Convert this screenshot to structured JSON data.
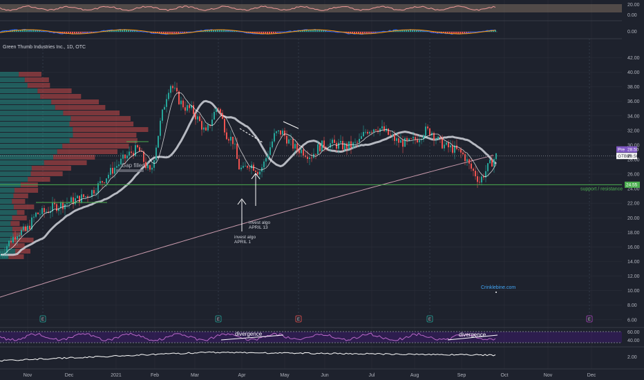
{
  "header": {
    "symbol_title": "Green Thumb Industries Inc., 1D, OTC"
  },
  "colors": {
    "background": "#1e222d",
    "up": "#26a69a",
    "down": "#ef5350",
    "ma_short": "#ffffff",
    "ma_long": "#d1d4dc",
    "ma_200": "#f8bbd0",
    "support": "#4caf50",
    "rsi": "#9c27b0",
    "volume_profile_up": "#26a69a",
    "volume_profile_down": "#ef5350"
  },
  "chart_data": [
    {
      "type": "candlestick",
      "pane": "main",
      "x_ticks": [
        "Nov",
        "Dec",
        "2021",
        "Feb",
        "Mar",
        "Apr",
        "May",
        "Jun",
        "Jul",
        "Aug",
        "Sep",
        "Oct",
        "Nov",
        "Dec"
      ],
      "y_ticks": [
        "6.00",
        "8.00",
        "10.00",
        "12.00",
        "14.00",
        "16.00",
        "18.00",
        "20.00",
        "22.00",
        "24.00",
        "26.00",
        "28.00",
        "30.00",
        "32.00",
        "34.00",
        "36.00",
        "38.00",
        "40.00",
        "42.00"
      ],
      "ylim": [
        5.6,
        43
      ],
      "price_path": [
        [
          0,
          14.8
        ],
        [
          12,
          16.5
        ],
        [
          25,
          18.0
        ],
        [
          38,
          18.2
        ],
        [
          52,
          20.5
        ],
        [
          65,
          20.8
        ],
        [
          78,
          21.5
        ],
        [
          95,
          22.0
        ],
        [
          110,
          22.5
        ],
        [
          125,
          23.0
        ],
        [
          140,
          24.2
        ],
        [
          155,
          25.8
        ],
        [
          165,
          26.8
        ],
        [
          178,
          28.0
        ],
        [
          190,
          29.0
        ],
        [
          200,
          29.5
        ],
        [
          212,
          27.0
        ],
        [
          218,
          26.0
        ],
        [
          225,
          29.5
        ],
        [
          232,
          33.0
        ],
        [
          240,
          36.5
        ],
        [
          246,
          38.5
        ],
        [
          252,
          37.5
        ],
        [
          260,
          36.0
        ],
        [
          268,
          35.2
        ],
        [
          278,
          34.8
        ],
        [
          290,
          33.0
        ],
        [
          298,
          31.5
        ],
        [
          306,
          33.5
        ],
        [
          315,
          35.5
        ],
        [
          320,
          34.0
        ],
        [
          328,
          31.5
        ],
        [
          338,
          30.5
        ],
        [
          345,
          27.0
        ],
        [
          352,
          26.5
        ],
        [
          360,
          27.5
        ],
        [
          368,
          27.0
        ],
        [
          375,
          26.3
        ],
        [
          382,
          27.5
        ],
        [
          390,
          29.5
        ],
        [
          398,
          31.5
        ],
        [
          408,
          31.8
        ],
        [
          418,
          30.5
        ],
        [
          428,
          29.5
        ],
        [
          438,
          29.2
        ],
        [
          450,
          28.5
        ],
        [
          462,
          29.8
        ],
        [
          475,
          30.2
        ],
        [
          488,
          30.0
        ],
        [
          500,
          29.8
        ],
        [
          512,
          30.0
        ],
        [
          520,
          30.5
        ],
        [
          530,
          32.0
        ],
        [
          545,
          32.5
        ],
        [
          555,
          32.0
        ],
        [
          565,
          31.2
        ],
        [
          575,
          30.5
        ],
        [
          590,
          30.2
        ],
        [
          605,
          31.0
        ],
        [
          615,
          32.0
        ],
        [
          625,
          31.8
        ],
        [
          635,
          30.5
        ],
        [
          645,
          29.8
        ],
        [
          655,
          29.5
        ],
        [
          665,
          29.0
        ],
        [
          672,
          28.5
        ],
        [
          680,
          27.0
        ],
        [
          688,
          26.0
        ],
        [
          694,
          25.0
        ],
        [
          700,
          26.0
        ],
        [
          708,
          27.2
        ],
        [
          718,
          28.5
        ]
      ],
      "last_price": "28.50",
      "prev_label": "Pre",
      "prev_price": "28.50",
      "symbol_label": "GTBIF",
      "support_price": "24.55",
      "support_label": "support / resistance",
      "gap_label": "Gap filled",
      "annotations": [
        {
          "text1": "invest algo",
          "text2": "APRIL 1"
        },
        {
          "text1": "invest algo",
          "text2": "APRIL 13"
        }
      ],
      "watermark": "Crinklebine.com",
      "event_markers": [
        "E",
        "E",
        "E",
        "E",
        "E"
      ]
    },
    {
      "type": "line",
      "pane": "top-oscillator",
      "y_ticks": [
        "20.00",
        "0.00"
      ]
    },
    {
      "type": "histogram",
      "pane": "macd",
      "y_ticks": [
        "0.00"
      ]
    },
    {
      "type": "line",
      "pane": "rsi",
      "y_ticks": [
        "60.00",
        "40.00"
      ],
      "labels": [
        "divergence",
        "divergence"
      ]
    },
    {
      "type": "line",
      "pane": "bottom",
      "y_ticks": [
        "2.00"
      ]
    }
  ]
}
